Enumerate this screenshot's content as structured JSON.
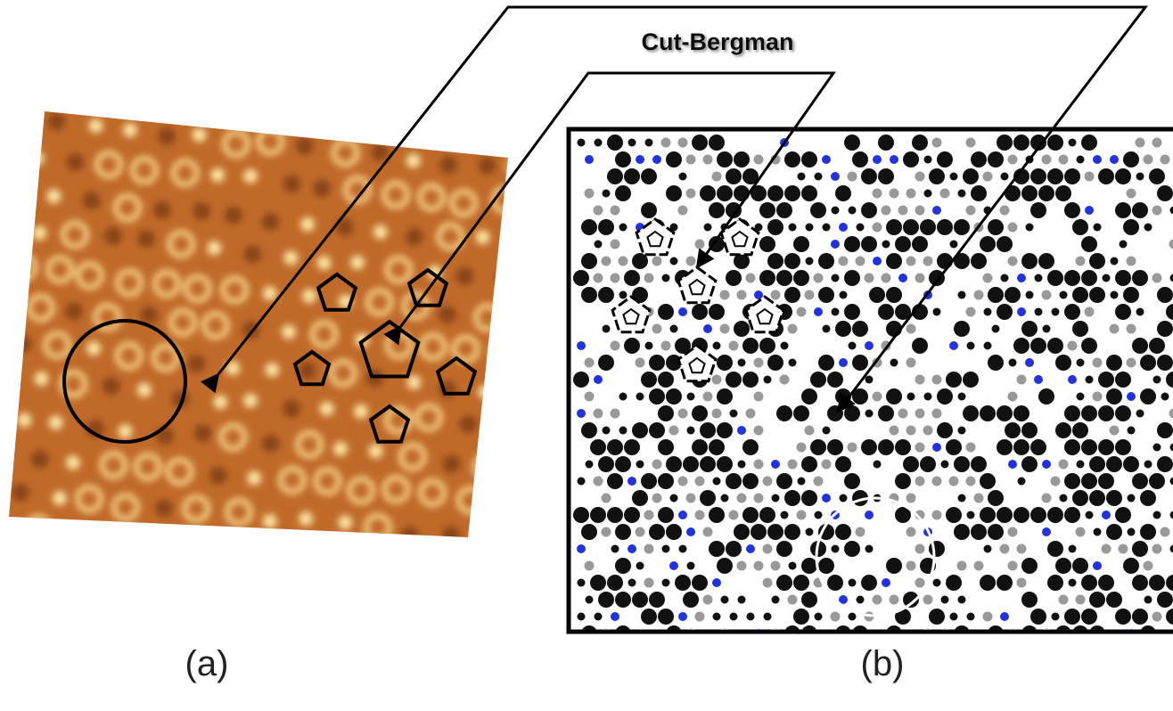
{
  "annotation": {
    "label": "Cut-Bergman"
  },
  "panels": [
    {
      "label": "(a)"
    },
    {
      "label": "(b)"
    }
  ]
}
